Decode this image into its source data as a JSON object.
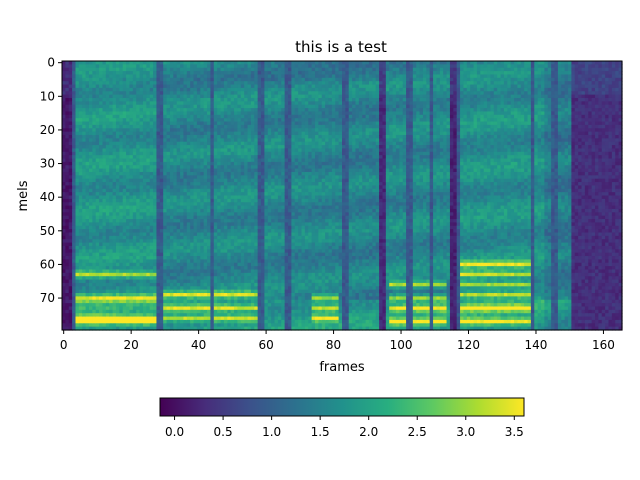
{
  "chart_data": {
    "type": "heatmap",
    "title": "this is a test",
    "xlabel": "frames",
    "ylabel": "mels",
    "n_frames": 166,
    "n_mels": 80,
    "xlim": [
      -0.5,
      165.5
    ],
    "ylim_inverted": [
      79.5,
      -0.5
    ],
    "xticks": [
      0,
      20,
      40,
      60,
      80,
      100,
      120,
      140,
      160
    ],
    "yticks": [
      0,
      10,
      20,
      30,
      40,
      50,
      60,
      70
    ],
    "colormap": "viridis",
    "colorbar": {
      "orientation": "horizontal",
      "range": [
        -0.15,
        3.6
      ],
      "ticks": [
        0.0,
        0.5,
        1.0,
        1.5,
        2.0,
        2.5,
        3.0,
        3.5
      ],
      "tick_labels": [
        "0.0",
        "0.5",
        "1.0",
        "1.5",
        "2.0",
        "2.5",
        "3.0",
        "3.5"
      ]
    },
    "grid": false,
    "segments": [
      {
        "from": 0,
        "to": 3,
        "level": 0.1
      },
      {
        "from": 3,
        "to": 29,
        "level": 1.75
      },
      {
        "from": 29,
        "to": 42,
        "level": 1.55
      },
      {
        "from": 42,
        "to": 60,
        "level": 1.6
      },
      {
        "from": 60,
        "to": 82,
        "level": 1.55
      },
      {
        "from": 82,
        "to": 94,
        "level": 1.5
      },
      {
        "from": 94,
        "to": 96,
        "level": 0.3
      },
      {
        "from": 96,
        "to": 115,
        "level": 1.6
      },
      {
        "from": 115,
        "to": 117,
        "level": 0.2
      },
      {
        "from": 117,
        "to": 143,
        "level": 1.7
      },
      {
        "from": 143,
        "to": 151,
        "level": 1.4
      },
      {
        "from": 151,
        "to": 166,
        "level": 0.35
      }
    ],
    "dark_columns": [
      3,
      28,
      29,
      44,
      58,
      59,
      66,
      67,
      83,
      84,
      94,
      95,
      102,
      103,
      109,
      115,
      116,
      117,
      139,
      145,
      146,
      152,
      153
    ],
    "bright_bands": [
      {
        "from": 4,
        "to": 28,
        "rows": [
          76,
          77,
          70,
          63
        ]
      },
      {
        "from": 29,
        "to": 60,
        "rows": [
          76,
          73,
          69
        ]
      },
      {
        "from": 74,
        "to": 82,
        "rows": [
          76,
          73,
          70
        ]
      },
      {
        "from": 97,
        "to": 114,
        "rows": [
          77,
          73,
          70,
          66
        ]
      },
      {
        "from": 118,
        "to": 140,
        "rows": [
          77,
          73,
          69,
          66,
          63,
          60
        ]
      }
    ]
  }
}
